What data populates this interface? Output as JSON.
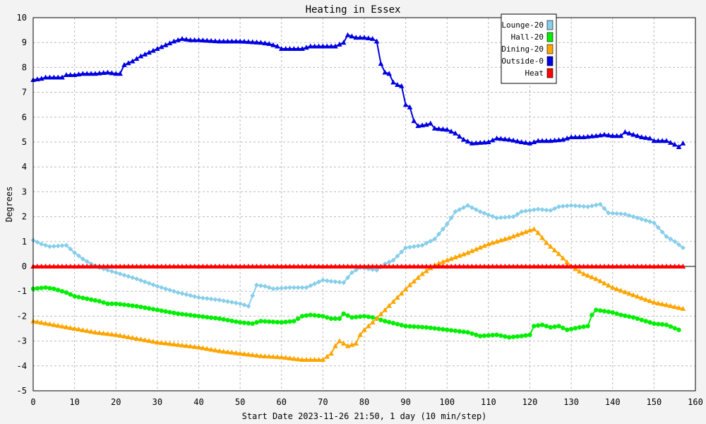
{
  "chart_data": {
    "type": "line",
    "title": "Heating in Essex",
    "xlabel": "Start Date 2023-11-26 21:50, 1 day (10 min/step)",
    "ylabel": "Degrees",
    "xlim": [
      0,
      160
    ],
    "ylim": [
      -5,
      10
    ],
    "xticks": [
      0,
      10,
      20,
      30,
      40,
      50,
      60,
      70,
      80,
      90,
      100,
      110,
      120,
      130,
      140,
      150,
      160
    ],
    "yticks": [
      -5,
      -4,
      -3,
      -2,
      -1,
      0,
      1,
      2,
      3,
      4,
      5,
      6,
      7,
      8,
      9,
      10
    ],
    "grid": true,
    "legend_position": "top-right",
    "series": [
      {
        "name": "Lounge-20",
        "color": "#87ceeb",
        "marker": "diamond",
        "points": [
          [
            0,
            1.05
          ],
          [
            2,
            0.9
          ],
          [
            4,
            0.8
          ],
          [
            6,
            0.82
          ],
          [
            8,
            0.85
          ],
          [
            10,
            0.55
          ],
          [
            12,
            0.3
          ],
          [
            14,
            0.1
          ],
          [
            16,
            -0.05
          ],
          [
            18,
            -0.15
          ],
          [
            20,
            -0.25
          ],
          [
            25,
            -0.5
          ],
          [
            30,
            -0.8
          ],
          [
            35,
            -1.05
          ],
          [
            40,
            -1.25
          ],
          [
            45,
            -1.35
          ],
          [
            50,
            -1.5
          ],
          [
            52,
            -1.6
          ],
          [
            54,
            -0.75
          ],
          [
            56,
            -0.8
          ],
          [
            58,
            -0.9
          ],
          [
            62,
            -0.85
          ],
          [
            66,
            -0.85
          ],
          [
            68,
            -0.7
          ],
          [
            70,
            -0.55
          ],
          [
            72,
            -0.6
          ],
          [
            75,
            -0.65
          ],
          [
            77,
            -0.25
          ],
          [
            79,
            -0.05
          ],
          [
            81,
            -0.1
          ],
          [
            83,
            -0.15
          ],
          [
            85,
            0.1
          ],
          [
            87,
            0.25
          ],
          [
            90,
            0.75
          ],
          [
            94,
            0.85
          ],
          [
            97,
            1.1
          ],
          [
            100,
            1.7
          ],
          [
            102,
            2.2
          ],
          [
            105,
            2.45
          ],
          [
            108,
            2.2
          ],
          [
            112,
            1.95
          ],
          [
            116,
            2.0
          ],
          [
            118,
            2.2
          ],
          [
            122,
            2.3
          ],
          [
            125,
            2.25
          ],
          [
            127,
            2.4
          ],
          [
            130,
            2.45
          ],
          [
            134,
            2.4
          ],
          [
            137,
            2.5
          ],
          [
            139,
            2.15
          ],
          [
            143,
            2.1
          ],
          [
            146,
            1.95
          ],
          [
            150,
            1.75
          ],
          [
            153,
            1.2
          ],
          [
            155,
            1.0
          ],
          [
            157,
            0.75
          ]
        ]
      },
      {
        "name": "Hall-20",
        "color": "#00ee00",
        "marker": "circle",
        "points": [
          [
            0,
            -0.9
          ],
          [
            3,
            -0.85
          ],
          [
            5,
            -0.9
          ],
          [
            8,
            -1.05
          ],
          [
            10,
            -1.2
          ],
          [
            13,
            -1.3
          ],
          [
            16,
            -1.4
          ],
          [
            18,
            -1.5
          ],
          [
            20,
            -1.5
          ],
          [
            25,
            -1.6
          ],
          [
            30,
            -1.75
          ],
          [
            35,
            -1.9
          ],
          [
            40,
            -2.0
          ],
          [
            45,
            -2.1
          ],
          [
            50,
            -2.25
          ],
          [
            53,
            -2.3
          ],
          [
            55,
            -2.2
          ],
          [
            60,
            -2.25
          ],
          [
            63,
            -2.2
          ],
          [
            65,
            -2.0
          ],
          [
            67,
            -1.95
          ],
          [
            70,
            -2.0
          ],
          [
            72,
            -2.1
          ],
          [
            74,
            -2.1
          ],
          [
            75,
            -1.9
          ],
          [
            77,
            -2.05
          ],
          [
            80,
            -2.0
          ],
          [
            82,
            -2.05
          ],
          [
            85,
            -2.2
          ],
          [
            90,
            -2.4
          ],
          [
            95,
            -2.45
          ],
          [
            100,
            -2.55
          ],
          [
            105,
            -2.65
          ],
          [
            108,
            -2.8
          ],
          [
            112,
            -2.75
          ],
          [
            115,
            -2.85
          ],
          [
            118,
            -2.8
          ],
          [
            120,
            -2.75
          ],
          [
            121,
            -2.4
          ],
          [
            123,
            -2.35
          ],
          [
            125,
            -2.45
          ],
          [
            127,
            -2.4
          ],
          [
            129,
            -2.55
          ],
          [
            132,
            -2.45
          ],
          [
            134,
            -2.4
          ],
          [
            135,
            -1.95
          ],
          [
            136,
            -1.75
          ],
          [
            138,
            -1.8
          ],
          [
            140,
            -1.85
          ],
          [
            142,
            -1.95
          ],
          [
            145,
            -2.05
          ],
          [
            148,
            -2.2
          ],
          [
            150,
            -2.3
          ],
          [
            153,
            -2.35
          ],
          [
            156,
            -2.55
          ]
        ]
      },
      {
        "name": "Dining-20",
        "color": "#ffa500",
        "marker": "triangle",
        "points": [
          [
            0,
            -2.2
          ],
          [
            5,
            -2.35
          ],
          [
            10,
            -2.5
          ],
          [
            15,
            -2.65
          ],
          [
            20,
            -2.75
          ],
          [
            25,
            -2.9
          ],
          [
            30,
            -3.05
          ],
          [
            35,
            -3.15
          ],
          [
            40,
            -3.25
          ],
          [
            45,
            -3.4
          ],
          [
            50,
            -3.5
          ],
          [
            55,
            -3.6
          ],
          [
            60,
            -3.65
          ],
          [
            65,
            -3.75
          ],
          [
            70,
            -3.75
          ],
          [
            72,
            -3.5
          ],
          [
            73,
            -3.2
          ],
          [
            74,
            -3.0
          ],
          [
            75,
            -3.1
          ],
          [
            76,
            -3.2
          ],
          [
            78,
            -3.1
          ],
          [
            79,
            -2.75
          ],
          [
            80,
            -2.55
          ],
          [
            82,
            -2.25
          ],
          [
            85,
            -1.75
          ],
          [
            88,
            -1.25
          ],
          [
            91,
            -0.75
          ],
          [
            94,
            -0.3
          ],
          [
            97,
            0.05
          ],
          [
            100,
            0.25
          ],
          [
            105,
            0.55
          ],
          [
            110,
            0.9
          ],
          [
            115,
            1.15
          ],
          [
            120,
            1.45
          ],
          [
            121,
            1.5
          ],
          [
            122,
            1.35
          ],
          [
            124,
            0.95
          ],
          [
            127,
            0.5
          ],
          [
            130,
            0.0
          ],
          [
            133,
            -0.3
          ],
          [
            136,
            -0.5
          ],
          [
            140,
            -0.85
          ],
          [
            145,
            -1.15
          ],
          [
            150,
            -1.45
          ],
          [
            153,
            -1.55
          ],
          [
            157,
            -1.7
          ]
        ]
      },
      {
        "name": "Outside-0",
        "color": "#0000e0",
        "marker": "triangle",
        "points": [
          [
            0,
            7.5
          ],
          [
            2,
            7.55
          ],
          [
            3,
            7.6
          ],
          [
            5,
            7.6
          ],
          [
            7,
            7.6
          ],
          [
            8,
            7.7
          ],
          [
            10,
            7.7
          ],
          [
            12,
            7.75
          ],
          [
            15,
            7.75
          ],
          [
            18,
            7.8
          ],
          [
            20,
            7.75
          ],
          [
            21,
            7.75
          ],
          [
            22,
            8.1
          ],
          [
            24,
            8.25
          ],
          [
            26,
            8.45
          ],
          [
            28,
            8.6
          ],
          [
            30,
            8.75
          ],
          [
            32,
            8.9
          ],
          [
            34,
            9.05
          ],
          [
            36,
            9.15
          ],
          [
            38,
            9.1
          ],
          [
            40,
            9.1
          ],
          [
            45,
            9.05
          ],
          [
            50,
            9.05
          ],
          [
            55,
            9.0
          ],
          [
            57,
            8.95
          ],
          [
            59,
            8.85
          ],
          [
            60,
            8.75
          ],
          [
            62,
            8.75
          ],
          [
            65,
            8.75
          ],
          [
            67,
            8.85
          ],
          [
            70,
            8.85
          ],
          [
            73,
            8.85
          ],
          [
            75,
            9.0
          ],
          [
            76,
            9.3
          ],
          [
            77,
            9.25
          ],
          [
            78,
            9.2
          ],
          [
            80,
            9.2
          ],
          [
            82,
            9.15
          ],
          [
            83,
            9.05
          ],
          [
            84,
            8.15
          ],
          [
            85,
            7.8
          ],
          [
            86,
            7.75
          ],
          [
            87,
            7.4
          ],
          [
            88,
            7.3
          ],
          [
            89,
            7.25
          ],
          [
            90,
            6.5
          ],
          [
            91,
            6.4
          ],
          [
            92,
            5.85
          ],
          [
            93,
            5.65
          ],
          [
            95,
            5.7
          ],
          [
            96,
            5.75
          ],
          [
            97,
            5.55
          ],
          [
            100,
            5.5
          ],
          [
            102,
            5.35
          ],
          [
            104,
            5.1
          ],
          [
            106,
            4.95
          ],
          [
            110,
            5.0
          ],
          [
            112,
            5.15
          ],
          [
            115,
            5.1
          ],
          [
            118,
            5.0
          ],
          [
            120,
            4.95
          ],
          [
            122,
            5.05
          ],
          [
            125,
            5.05
          ],
          [
            128,
            5.1
          ],
          [
            130,
            5.2
          ],
          [
            133,
            5.2
          ],
          [
            136,
            5.25
          ],
          [
            138,
            5.3
          ],
          [
            140,
            5.25
          ],
          [
            142,
            5.25
          ],
          [
            143,
            5.4
          ],
          [
            145,
            5.3
          ],
          [
            147,
            5.2
          ],
          [
            149,
            5.15
          ],
          [
            150,
            5.05
          ],
          [
            153,
            5.05
          ],
          [
            155,
            4.9
          ],
          [
            156,
            4.8
          ],
          [
            157,
            4.95
          ]
        ]
      },
      {
        "name": "Heat",
        "color": "#ff0000",
        "marker": "triangle",
        "points": [
          [
            0,
            0
          ],
          [
            157,
            0
          ]
        ]
      }
    ]
  }
}
